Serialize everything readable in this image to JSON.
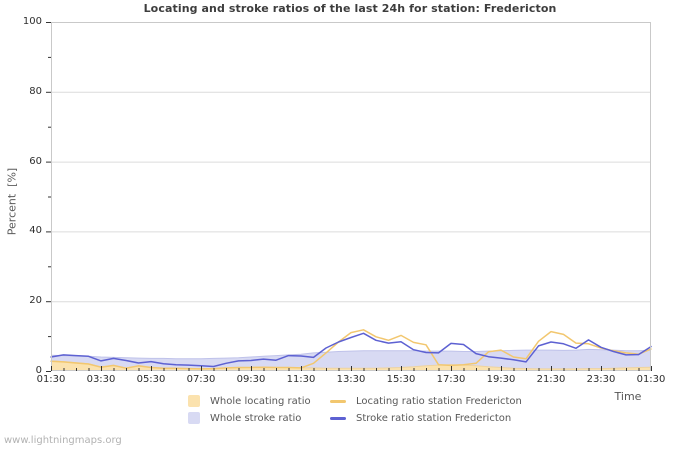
{
  "page": {
    "watermark": "www.lightningmaps.org"
  },
  "chart_data": {
    "type": "area",
    "title": "Locating and stroke ratios of the last 24h for station: Fredericton",
    "ylabel": "Percent  [%]",
    "xlabel": "Time",
    "ylim": [
      0,
      100
    ],
    "yticks_major": [
      0,
      20,
      40,
      60,
      80,
      100
    ],
    "yticks_minor": [
      10,
      30,
      50,
      70,
      90
    ],
    "x_step_minutes": 30,
    "x_label_every_n_points": 4,
    "x_labels": [
      "01:30",
      "03:30",
      "05:30",
      "07:30",
      "09:30",
      "11:30",
      "13:30",
      "15:30",
      "17:30",
      "19:30",
      "21:30",
      "23:30",
      "01:30"
    ],
    "grid": "horizontal-major",
    "legend_position": "bottom",
    "colors": {
      "grid": "#dcdcdc",
      "plot_border": "#c9c9c9",
      "tick": "#333333",
      "whole_locating_fill": "#fbe2ae",
      "whole_locating_edge": "#eed3a0",
      "whole_stroke_fill": "#d8daf3",
      "whole_stroke_edge": "#bfc2ea",
      "locating_line": "#f2c76f",
      "stroke_line": "#5d61d2"
    },
    "draw_order": [
      1,
      0,
      2,
      3
    ],
    "series": [
      {
        "name": "Whole locating ratio",
        "type": "area",
        "color": "#fbe2ae",
        "values": [
          2.9,
          2.7,
          2.4,
          2.1,
          1.2,
          1.5,
          0.9,
          1.4,
          1.0,
          0.8,
          0.7,
          0.7,
          0.6,
          0.7,
          0.8,
          0.9,
          1.0,
          1.1,
          1.0,
          1.0,
          0.9,
          0.9,
          0.8,
          0.8,
          0.8,
          0.8,
          0.8,
          0.9,
          1.0,
          1.2,
          1.5,
          1.7,
          1.8,
          1.7,
          1.5,
          1.2,
          1.0,
          0.8,
          0.7,
          0.6,
          0.6,
          0.6,
          0.6,
          0.7,
          0.7,
          0.8,
          0.9,
          1.0,
          1.1
        ]
      },
      {
        "name": "Whole stroke ratio",
        "type": "area",
        "color": "#d8daf3",
        "values": [
          4.5,
          4.4,
          4.3,
          4.2,
          4.0,
          3.9,
          3.8,
          3.7,
          3.6,
          3.6,
          3.5,
          3.5,
          3.5,
          3.6,
          3.7,
          3.8,
          4.0,
          4.2,
          4.4,
          4.6,
          4.8,
          5.2,
          5.4,
          5.6,
          5.7,
          5.8,
          5.8,
          5.8,
          5.8,
          5.8,
          5.7,
          5.7,
          5.7,
          5.6,
          5.6,
          5.7,
          5.8,
          5.9,
          6.0,
          6.0,
          6.0,
          5.9,
          6.0,
          6.2,
          6.1,
          6.0,
          5.8,
          5.8,
          6.0
        ]
      },
      {
        "name": "Locating ratio station Fredericton",
        "type": "line",
        "color": "#f2c76f",
        "values": [
          2.8,
          2.6,
          2.3,
          2.0,
          1.1,
          1.6,
          0.8,
          1.5,
          1.0,
          0.8,
          0.8,
          0.7,
          0.6,
          0.7,
          0.9,
          1.0,
          1.0,
          1.1,
          1.0,
          1.0,
          0.9,
          2.2,
          5.2,
          8.3,
          11.0,
          11.8,
          9.8,
          8.8,
          10.2,
          8.2,
          7.5,
          1.8,
          1.6,
          1.8,
          2.2,
          5.5,
          6.0,
          4.0,
          3.5,
          8.5,
          11.3,
          10.5,
          8.0,
          7.8,
          6.6,
          5.8,
          5.2,
          4.8,
          6.3
        ]
      },
      {
        "name": "Stroke ratio station Fredericton",
        "type": "line",
        "color": "#5d61d2",
        "values": [
          4.0,
          4.6,
          4.4,
          4.2,
          2.9,
          3.6,
          3.0,
          2.3,
          2.7,
          2.1,
          1.8,
          1.7,
          1.5,
          1.3,
          2.2,
          2.9,
          3.0,
          3.4,
          3.1,
          4.4,
          4.3,
          3.9,
          6.6,
          8.3,
          9.6,
          10.8,
          8.8,
          8.0,
          8.4,
          6.1,
          5.3,
          5.2,
          7.9,
          7.6,
          5.0,
          4.1,
          3.7,
          3.2,
          2.6,
          7.2,
          8.3,
          7.8,
          6.5,
          8.9,
          6.8,
          5.6,
          4.6,
          4.7,
          7.0
        ]
      }
    ]
  }
}
